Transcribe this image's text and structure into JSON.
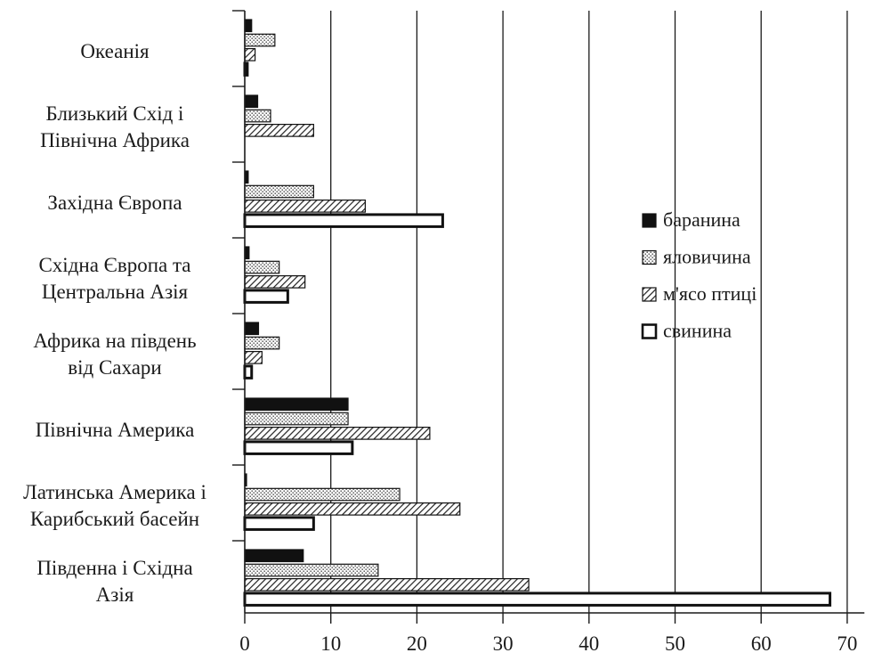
{
  "chart_data": {
    "type": "bar",
    "orientation": "horizontal",
    "categories": [
      [
        "Океанія"
      ],
      [
        "Близький Схід і",
        "Північна Африка"
      ],
      [
        "Західна Європа"
      ],
      [
        "Східна Європа та",
        "Центральна Азія"
      ],
      [
        "Африка на південь",
        "від Сахари"
      ],
      [
        "Північна Америка"
      ],
      [
        "Латинська Америка і",
        "Карибський басейн"
      ],
      [
        "Південна і Східна",
        "Азія"
      ]
    ],
    "series": [
      {
        "name": "баранина",
        "pattern": "solid",
        "color": "#111111",
        "values": [
          0.8,
          1.5,
          0.4,
          0.5,
          1.6,
          12,
          0.1,
          6.8
        ]
      },
      {
        "name": "яловичина",
        "pattern": "dots",
        "color": "#555555",
        "values": [
          3.5,
          3.0,
          8.0,
          4.0,
          4.0,
          12,
          18,
          15.5
        ]
      },
      {
        "name": "м'ясо птиці",
        "pattern": "hatch",
        "color": "#333333",
        "values": [
          1.2,
          8.0,
          14.0,
          7.0,
          2.0,
          21.5,
          25,
          33
        ]
      },
      {
        "name": "свинина",
        "pattern": "outline",
        "color": "#111111",
        "values": [
          0.3,
          0,
          23.0,
          5.0,
          0.8,
          12.5,
          8.0,
          68
        ]
      }
    ],
    "xlim": [
      0,
      72
    ],
    "xticks": [
      0,
      10,
      20,
      30,
      40,
      50,
      60,
      70
    ],
    "grid": "vertical",
    "legend": "right"
  }
}
